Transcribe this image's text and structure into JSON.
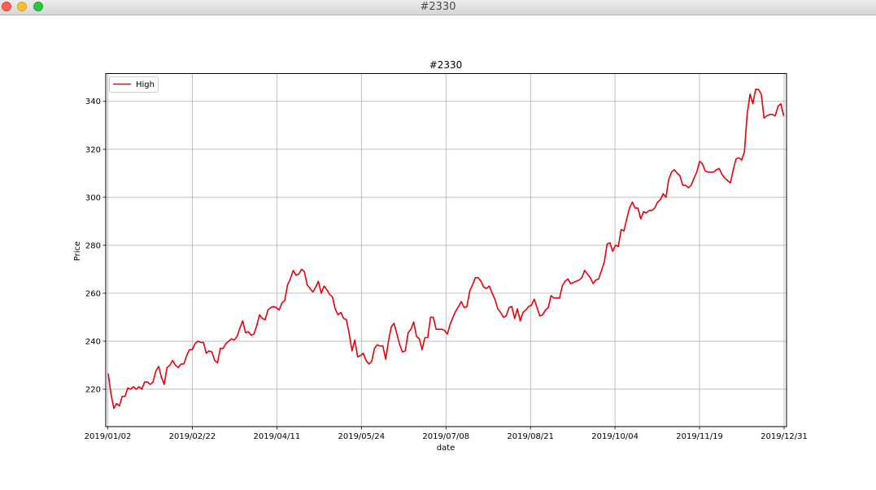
{
  "window": {
    "title": "#2330"
  },
  "chart_data": {
    "type": "line",
    "title": "#2330",
    "xlabel": "date",
    "ylabel": "Price",
    "x_tick_labels": [
      "2019/01/02",
      "2019/02/22",
      "2019/04/11",
      "2019/05/24",
      "2019/07/08",
      "2019/08/21",
      "2019/10/04",
      "2019/11/19",
      "2019/12/31"
    ],
    "y_ticks": [
      220,
      240,
      260,
      280,
      300,
      320,
      340
    ],
    "ylim": [
      204.4,
      351.6
    ],
    "grid": true,
    "legend_position": "top-left",
    "series": [
      {
        "name": "High",
        "color": "#e8000b",
        "values": [
          226.5,
          218,
          212,
          214,
          213,
          217,
          217,
          220.5,
          220,
          221,
          220,
          221,
          220,
          223,
          223,
          222,
          223,
          227.5,
          229.5,
          225,
          222,
          229,
          230,
          232,
          230,
          229,
          230.5,
          230.5,
          234,
          236.5,
          236.5,
          239,
          240,
          239.5,
          239.5,
          235,
          236,
          235.5,
          232,
          231,
          237,
          237,
          239,
          240,
          241,
          240.5,
          242,
          245.5,
          248.5,
          243.5,
          244,
          242.5,
          243,
          246.5,
          251,
          249.5,
          249,
          253,
          254,
          254.5,
          254,
          253,
          256,
          257,
          263.5,
          266,
          269.5,
          267.5,
          268,
          270,
          269,
          263.5,
          262,
          260.5,
          262.5,
          265,
          260,
          263,
          261.5,
          259.5,
          258.5,
          253.5,
          251,
          252,
          249.5,
          249,
          243,
          236,
          240.5,
          233.5,
          234,
          235,
          232,
          230.5,
          231.5,
          237,
          238.5,
          238,
          238,
          232.5,
          240,
          246,
          247.5,
          243,
          238.5,
          235.5,
          236,
          243.5,
          245,
          248,
          242,
          241,
          236.5,
          241.5,
          241.5,
          250,
          250,
          245,
          245,
          245,
          244.5,
          243,
          247,
          250,
          252.5,
          254.5,
          256.5,
          254,
          254.5,
          261,
          263.5,
          266.5,
          266.5,
          265,
          262.5,
          262,
          263,
          260,
          257.5,
          253.5,
          252,
          250,
          250.5,
          254,
          254.5,
          249.5,
          253.5,
          248.5,
          252,
          253,
          254.5,
          255,
          257.5,
          254,
          250.5,
          251,
          253,
          254,
          259,
          258,
          258,
          258,
          263,
          265,
          266,
          264,
          264.5,
          265,
          265.5,
          266.5,
          269.5,
          268,
          266.5,
          264,
          265.5,
          266,
          269.5,
          273,
          280.5,
          281,
          277.5,
          280,
          279.5,
          286.5,
          286,
          291,
          295.5,
          298,
          295.5,
          295.5,
          291,
          294,
          293.5,
          294.5,
          294.5,
          295.5,
          298,
          299,
          301.5,
          300,
          307.5,
          310.5,
          311.5,
          310,
          309,
          305,
          305,
          304,
          305,
          308,
          310.5,
          315,
          314,
          311,
          310.5,
          310.5,
          310.5,
          311.5,
          312,
          309.5,
          308,
          307,
          306,
          311.5,
          316,
          316.5,
          315.5,
          319,
          335,
          343,
          339,
          345,
          345,
          343,
          333,
          334,
          334.5,
          334.5,
          334,
          338,
          339,
          334
        ]
      }
    ]
  }
}
